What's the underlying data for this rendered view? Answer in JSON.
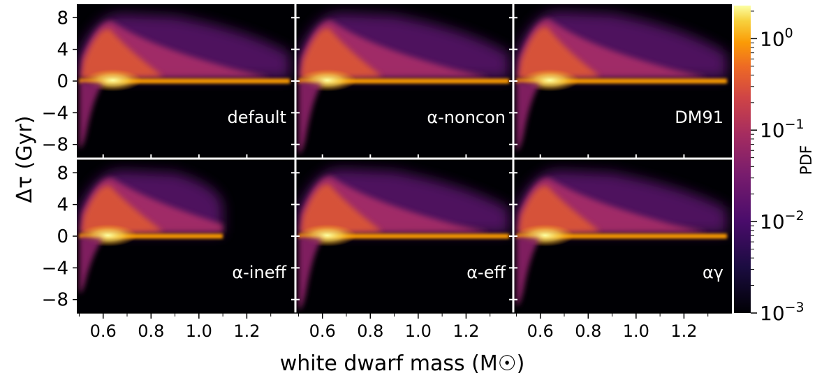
{
  "chart_data": {
    "type": "heatmap",
    "xlabel": "white dwarf mass (M☉)",
    "ylabel": "Δτ (Gyr)",
    "xlim": [
      0.49,
      1.4
    ],
    "ylim": [
      -9.7,
      9.7
    ],
    "x_ticks": [
      0.6,
      0.8,
      1.0,
      1.2
    ],
    "x_tick_labels": [
      "0.6",
      "0.8",
      "1.0",
      "1.2"
    ],
    "y_ticks": [
      8,
      4,
      0,
      -4,
      -8
    ],
    "y_tick_labels": [
      "8",
      "4",
      "0",
      "−4",
      "−8"
    ],
    "colorbar": {
      "label": "PDF",
      "scale": "log",
      "range": [
        0.001,
        2.3
      ],
      "tick_values": [
        1,
        0.1,
        0.01,
        0.001
      ],
      "tick_labels": [
        {
          "base": "10",
          "exp": "0"
        },
        {
          "base": "10",
          "exp": "−1"
        },
        {
          "base": "10",
          "exp": "−2"
        },
        {
          "base": "10",
          "exp": "−3"
        }
      ],
      "colormap": "inferno-like"
    },
    "panels": [
      {
        "label": "default",
        "ridge_peak_x": 0.64,
        "upper_extent_x": 1.38,
        "upper_peak_gyr": 8.5,
        "negative_tail_gyr": -8.5
      },
      {
        "label": "α-noncon",
        "ridge_peak_x": 0.62,
        "upper_extent_x": 1.38,
        "upper_peak_gyr": 8.6,
        "negative_tail_gyr": -9.2
      },
      {
        "label": "DM91",
        "ridge_peak_x": 0.64,
        "upper_extent_x": 1.38,
        "upper_peak_gyr": 8.8,
        "negative_tail_gyr": -8.8
      },
      {
        "label": "α-ineff",
        "ridge_peak_x": 0.62,
        "upper_extent_x": 1.1,
        "upper_peak_gyr": 8.3,
        "negative_tail_gyr": -7.2
      },
      {
        "label": "α-eff",
        "ridge_peak_x": 0.62,
        "upper_extent_x": 1.38,
        "upper_peak_gyr": 8.5,
        "negative_tail_gyr": -9.3
      },
      {
        "label": "αγ",
        "ridge_peak_x": 0.62,
        "upper_extent_x": 1.38,
        "upper_peak_gyr": 8.3,
        "negative_tail_gyr": -8.8
      }
    ],
    "grid": false,
    "layout": "2 rows × 3 columns, shared axes"
  }
}
